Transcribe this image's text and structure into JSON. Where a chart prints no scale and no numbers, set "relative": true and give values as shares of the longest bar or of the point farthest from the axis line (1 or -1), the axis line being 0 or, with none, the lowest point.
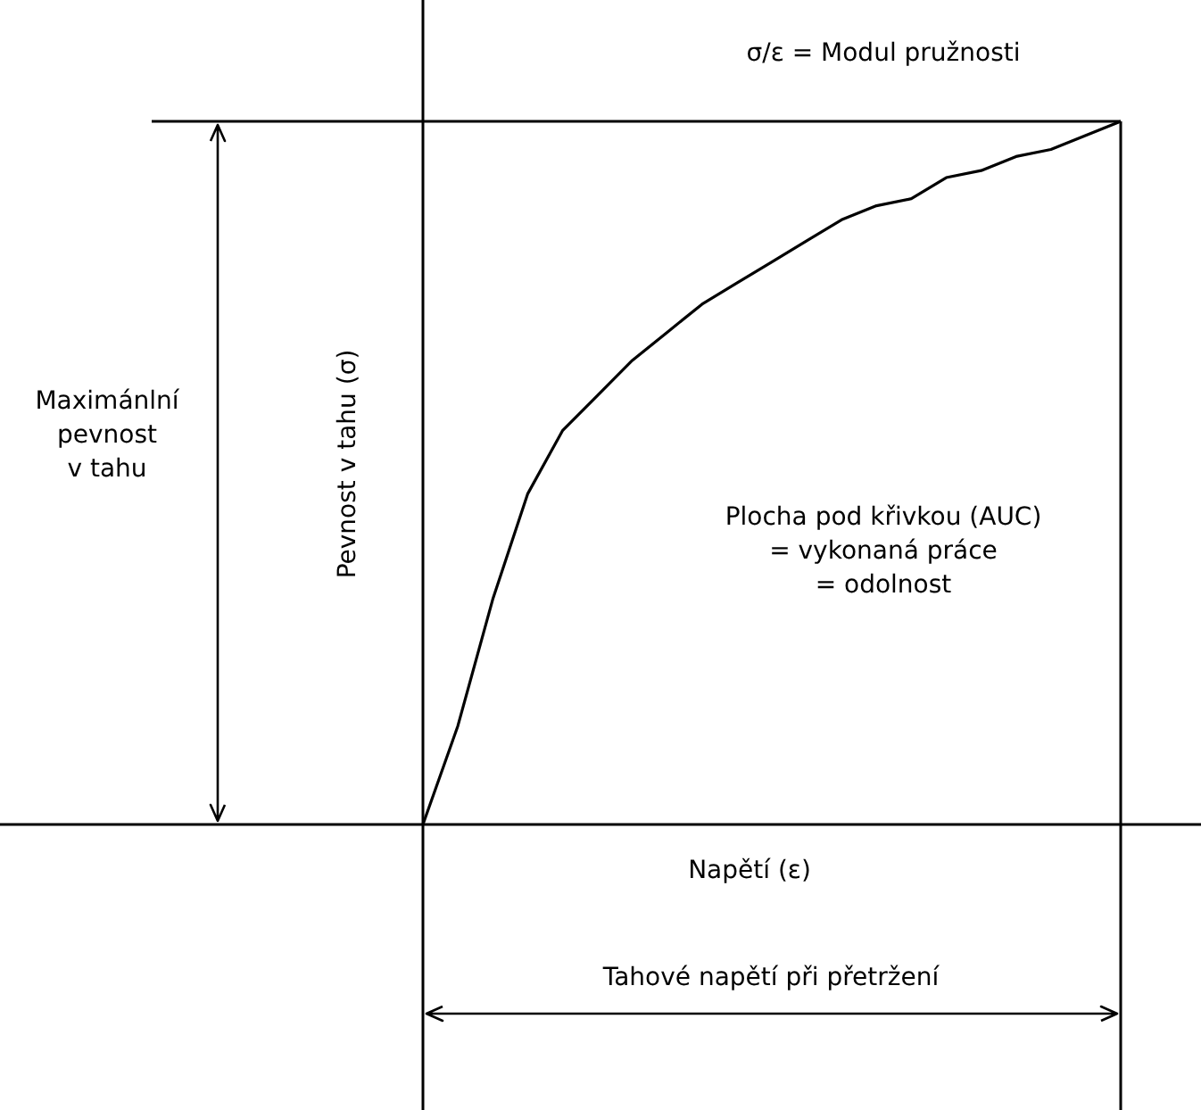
{
  "chart_data": {
    "type": "line",
    "relative": true,
    "xlabel": "Napětí (ε)",
    "ylabel": "Pevnost v tahu (σ)",
    "categories": [
      null,
      null,
      null,
      null,
      null,
      null,
      null,
      null,
      null,
      null,
      null,
      null,
      null,
      null,
      null,
      null,
      null,
      null,
      null,
      null,
      null
    ],
    "series": [
      {
        "color": "#000000",
        "values": [
          0,
          0.14,
          0.32,
          0.47,
          0.56,
          0.61,
          0.66,
          0.7,
          0.74,
          0.77,
          0.8,
          0.83,
          0.86,
          0.88,
          0.89,
          0.92,
          0.93,
          0.95,
          0.96,
          0.98,
          1
        ]
      }
    ],
    "annotations": [
      "σ/ε = Modul pružnosti",
      "Maximánlní\npevnost\nv tahu",
      "Plocha pod křivkou (AUC)\n= vykonaná práce\n= odolnost",
      "Tahové napětí při přetržení"
    ],
    "ref_lines": [
      {
        "axis": "y",
        "value": 1,
        "color": "#000000"
      }
    ]
  }
}
